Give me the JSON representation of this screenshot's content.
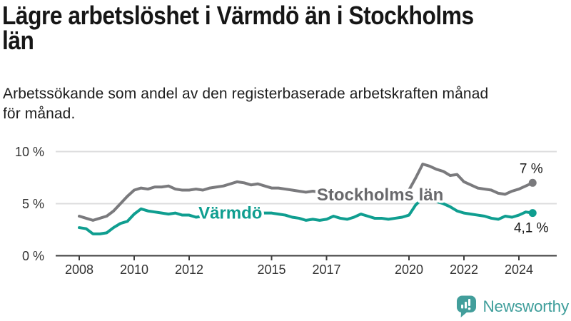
{
  "header": {
    "title_lines": [
      "Lägre arbetslöshet i Värmdö än i Stockholms",
      "län"
    ],
    "subtitle_lines": [
      "Arbetssökande som andel av den registerbaserade arbetskraften månad",
      "för månad."
    ]
  },
  "chart_data": {
    "type": "line",
    "unit": "%",
    "grid": "horizontal",
    "legend_position": "inline",
    "xlim": [
      2008,
      2024.6
    ],
    "ylim": [
      0,
      10
    ],
    "y_ticks": [
      {
        "value": 0,
        "label": "0 %"
      },
      {
        "value": 5,
        "label": "5 %"
      },
      {
        "value": 10,
        "label": "10 %"
      }
    ],
    "x_ticks": [
      {
        "value": 2008,
        "label": "2008"
      },
      {
        "value": 2010,
        "label": "2010"
      },
      {
        "value": 2012,
        "label": "2012"
      },
      {
        "value": 2015,
        "label": "2015"
      },
      {
        "value": 2017,
        "label": "2017"
      },
      {
        "value": 2020,
        "label": "2020"
      },
      {
        "value": 2022,
        "label": "2022"
      },
      {
        "value": 2024,
        "label": "2024"
      }
    ],
    "x": [
      2008,
      2008.25,
      2008.5,
      2008.75,
      2009,
      2009.25,
      2009.5,
      2009.75,
      2010,
      2010.25,
      2010.5,
      2010.75,
      2011,
      2011.25,
      2011.5,
      2011.75,
      2012,
      2012.25,
      2012.5,
      2012.75,
      2013,
      2013.25,
      2013.5,
      2013.75,
      2014,
      2014.25,
      2014.5,
      2014.75,
      2015,
      2015.25,
      2015.5,
      2015.75,
      2016,
      2016.25,
      2016.5,
      2016.75,
      2017,
      2017.25,
      2017.5,
      2017.75,
      2018,
      2018.25,
      2018.5,
      2018.75,
      2019,
      2019.25,
      2019.5,
      2019.75,
      2020,
      2020.25,
      2020.5,
      2020.75,
      2021,
      2021.25,
      2021.5,
      2021.75,
      2022,
      2022.25,
      2022.5,
      2022.75,
      2023,
      2023.25,
      2023.5,
      2023.75,
      2024,
      2024.25,
      2024.5
    ],
    "series": [
      {
        "id": "stockholms-lan",
        "name": "Stockholms län",
        "color": "#7a7a7d",
        "label_color": "#69696c",
        "end_label": "7 %",
        "end_label_position": "above",
        "label_anchor": {
          "x": 2018.95,
          "y": 5.3
        },
        "values": [
          3.8,
          3.6,
          3.4,
          3.6,
          3.8,
          4.3,
          5.0,
          5.7,
          6.3,
          6.5,
          6.4,
          6.6,
          6.6,
          6.7,
          6.4,
          6.3,
          6.3,
          6.4,
          6.3,
          6.5,
          6.6,
          6.7,
          6.9,
          7.1,
          7.0,
          6.8,
          6.9,
          6.7,
          6.5,
          6.5,
          6.4,
          6.3,
          6.2,
          6.1,
          6.2,
          6.1,
          6.2,
          6.1,
          6.0,
          5.9,
          5.9,
          5.8,
          5.9,
          5.8,
          5.9,
          6.0,
          6.0,
          6.1,
          6.3,
          7.5,
          8.8,
          8.6,
          8.3,
          8.1,
          7.7,
          7.8,
          7.1,
          6.8,
          6.5,
          6.4,
          6.3,
          6.0,
          5.9,
          6.2,
          6.4,
          6.7,
          7.0
        ]
      },
      {
        "id": "varmdo",
        "name": "Värmdö",
        "color": "#0f9e90",
        "label_color": "#0f9e90",
        "end_label": "4,1 %",
        "end_label_position": "below",
        "label_anchor": {
          "x": 2013.5,
          "y": 3.55
        },
        "values": [
          2.7,
          2.6,
          2.1,
          2.1,
          2.2,
          2.7,
          3.1,
          3.3,
          4.0,
          4.5,
          4.3,
          4.2,
          4.1,
          4.0,
          4.1,
          3.9,
          3.9,
          3.7,
          3.8,
          3.9,
          4.0,
          4.0,
          4.1,
          4.0,
          4.1,
          4.0,
          4.1,
          4.1,
          4.1,
          4.0,
          3.9,
          3.7,
          3.6,
          3.4,
          3.5,
          3.4,
          3.5,
          3.8,
          3.6,
          3.5,
          3.7,
          4.0,
          3.8,
          3.6,
          3.6,
          3.5,
          3.6,
          3.7,
          3.9,
          4.9,
          5.5,
          5.4,
          5.2,
          5.0,
          4.7,
          4.3,
          4.1,
          4.0,
          3.9,
          3.8,
          3.6,
          3.5,
          3.8,
          3.7,
          3.9,
          4.2,
          4.1
        ]
      }
    ]
  },
  "footer": {
    "brand": "Newsworthy",
    "brand_color": "#3f9e9b",
    "icon": "newsworthy-speech-bubble-chart-icon"
  }
}
